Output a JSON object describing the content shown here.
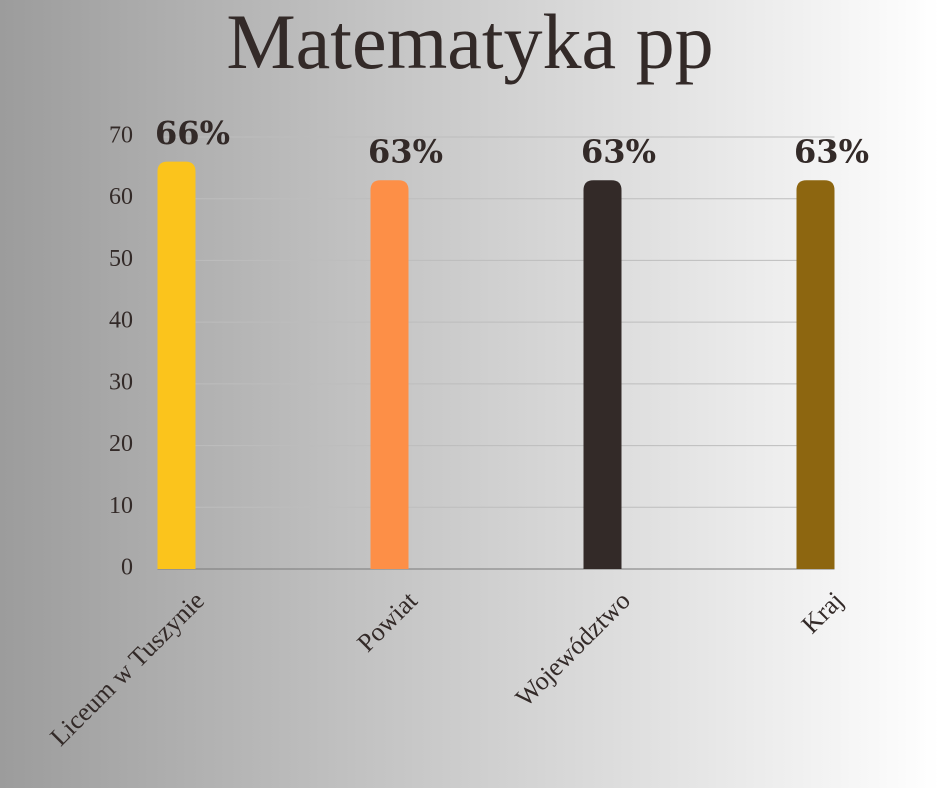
{
  "chart_data": {
    "type": "bar",
    "title": "Matematyka pp",
    "categories": [
      "Liceum w Tuszynie",
      "Powiat",
      "Województwo",
      "Kraj"
    ],
    "values": [
      66,
      63,
      63,
      63
    ],
    "value_labels": [
      "66%",
      "63%",
      "63%",
      "63%"
    ],
    "colors": [
      "#fbc41c",
      "#fd8f47",
      "#332a28",
      "#8d6610"
    ],
    "ylim": [
      0,
      70
    ],
    "yticks": [
      0,
      10,
      20,
      30,
      40,
      50,
      60,
      70
    ],
    "grid": true
  }
}
